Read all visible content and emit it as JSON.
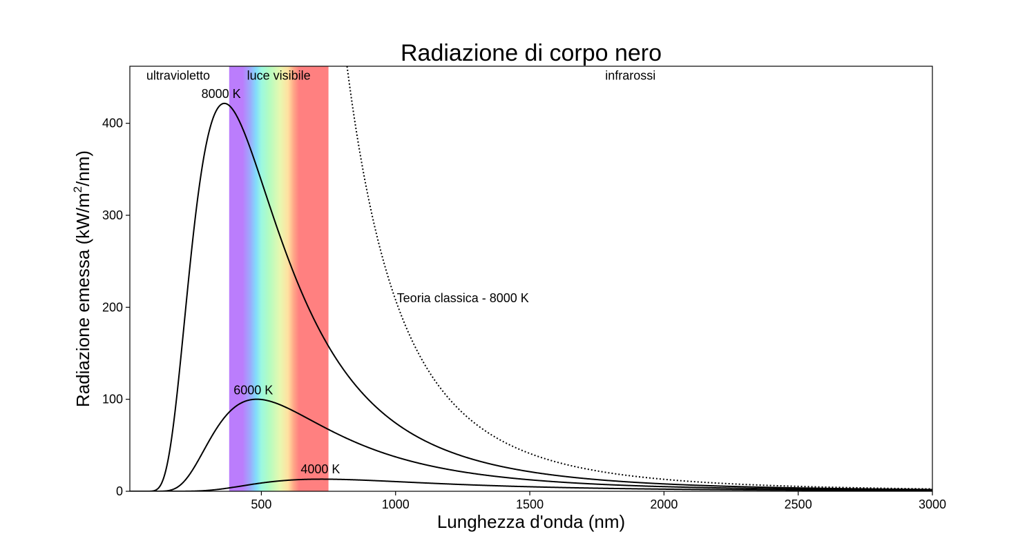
{
  "chart_data": {
    "type": "line",
    "title": "Radiazione di corpo nero",
    "xlabel": "Lunghezza d'onda (nm)",
    "ylabel": "Radiazione emessa (kW/m²/nm)",
    "ylabel_parts": {
      "before": "Radiazione emessa (kW/m",
      "sup": "2",
      "after": "/nm)"
    },
    "xlim": [
      10,
      3000
    ],
    "ylim": [
      0,
      462
    ],
    "xticks": [
      500,
      1000,
      1500,
      2000,
      2500,
      3000
    ],
    "yticks": [
      0,
      100,
      200,
      300,
      400
    ],
    "grid": false,
    "series": [
      {
        "name": "8000 K",
        "temperature": 8000,
        "style": "solid",
        "label_pos": {
          "x": 350,
          "y": 432
        }
      },
      {
        "name": "6000 K",
        "temperature": 6000,
        "style": "solid",
        "label_pos": {
          "x": 470,
          "y": 110
        }
      },
      {
        "name": "4000 K",
        "temperature": 4000,
        "style": "solid",
        "label_pos": {
          "x": 720,
          "y": 24
        }
      },
      {
        "name": "Teoria classica - 8000 K",
        "temperature": 8000,
        "style": "dotted",
        "model": "rayleigh-jeans",
        "label_pos": {
          "x": 1270,
          "y": 210
        }
      }
    ],
    "regions": [
      {
        "name": "ultravioletto",
        "label_pos": {
          "x": 190,
          "y": 452
        }
      },
      {
        "name": "luce visibile",
        "range": [
          380,
          750
        ],
        "label_pos": {
          "x": 565,
          "y": 452
        }
      },
      {
        "name": "infrarossi",
        "label_pos": {
          "x": 1875,
          "y": 452
        }
      }
    ],
    "spectrum_colors": [
      {
        "nm": 380,
        "color": "#bb7dfc"
      },
      {
        "nm": 430,
        "color": "#bb7dfc"
      },
      {
        "nm": 460,
        "color": "#9aaefc"
      },
      {
        "nm": 480,
        "color": "#82dcfc"
      },
      {
        "nm": 500,
        "color": "#9cf8e0"
      },
      {
        "nm": 530,
        "color": "#b4fcc0"
      },
      {
        "nm": 570,
        "color": "#e8f8b0"
      },
      {
        "nm": 600,
        "color": "#ffe0a0"
      },
      {
        "nm": 620,
        "color": "#ffa888"
      },
      {
        "nm": 640,
        "color": "#ff8080"
      },
      {
        "nm": 750,
        "color": "#ff8080"
      }
    ]
  }
}
